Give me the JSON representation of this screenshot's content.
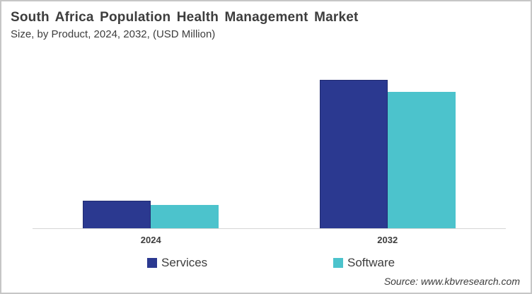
{
  "header": {
    "title": "South Africa Population Health Management Market",
    "subtitle": "Size, by Product, 2024, 2032, (USD Million)"
  },
  "source": "Source: www.kbvresearch.com",
  "colors": {
    "services": "#2B3990",
    "software": "#4CC3CC",
    "axis_line": "#D6D6D6",
    "text": "#3D3D3D",
    "frame_border": "#C6C6C6",
    "background": "#FFFFFF"
  },
  "legend": [
    {
      "label": "Services",
      "color": "#2B3990"
    },
    {
      "label": "Software",
      "color": "#4CC3CC"
    }
  ],
  "chart_data": {
    "type": "bar",
    "title": "South Africa Population Health Management Market",
    "subtitle": "Size, by Product, 2024, 2032, (USD Million)",
    "categories": [
      "2024",
      "2032"
    ],
    "series": [
      {
        "name": "Services",
        "color": "#2B3990",
        "values": [
          19,
          100
        ]
      },
      {
        "name": "Software",
        "color": "#4CC3CC",
        "values": [
          16,
          92
        ]
      }
    ],
    "xlabel": "",
    "ylabel": "",
    "value_axis": {
      "visible": false,
      "min": 0,
      "max": 110,
      "note": "No numeric axis or data labels shown in figure; values are estimated relative heights with the tallest bar (Services 2032) = 100"
    },
    "grid": false,
    "legend_position": "bottom"
  }
}
